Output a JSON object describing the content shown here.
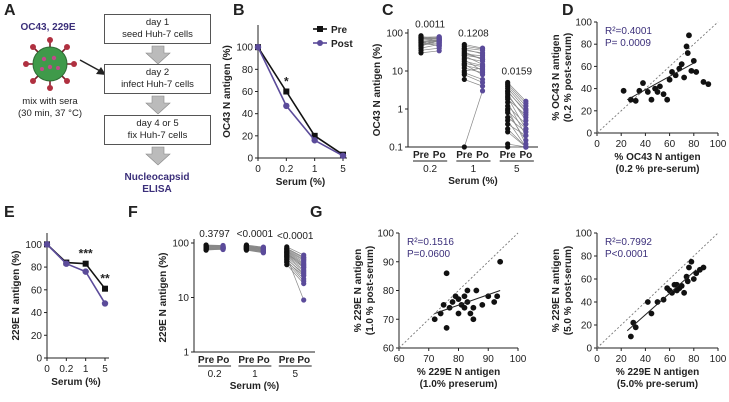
{
  "panels": {
    "A": "A",
    "B": "B",
    "C": "C",
    "D": "D",
    "E": "E",
    "F": "F",
    "G": "G"
  },
  "schematic": {
    "virus_label": "OC43, 229E",
    "mix_line1": "mix with sera",
    "mix_line2": "(30 min, 37 °C)",
    "steps": [
      {
        "line1": "day 1",
        "line2": "seed Huh-7 cells"
      },
      {
        "line1": "day 2",
        "line2": "infect Huh-7 cells"
      },
      {
        "line1": "day 4 or 5",
        "line2": "fix Huh-7 cells"
      }
    ],
    "readout_line1": "Nucleocapsid",
    "readout_line2": "ELISA"
  },
  "colors": {
    "pre": "#111111",
    "post": "#5b4b9a",
    "accent": "#3b2f7a",
    "line": "#888888"
  },
  "chart_data": [
    {
      "id": "B",
      "type": "line",
      "ylabel": "OC43 N antigen (%)",
      "xlabel": "Serum (%)",
      "x_ticks": [
        "0",
        "0.2",
        "1",
        "5"
      ],
      "yticks": [
        0,
        20,
        40,
        60,
        80,
        100
      ],
      "ylim": [
        0,
        120
      ],
      "legend": [
        "Pre",
        "Post"
      ],
      "series": [
        {
          "name": "Pre",
          "values": [
            100,
            60,
            20,
            3
          ]
        },
        {
          "name": "Post",
          "values": [
            100,
            47,
            16,
            2
          ]
        }
      ],
      "annotations": [
        {
          "x": "0.2",
          "text": "*"
        }
      ]
    },
    {
      "id": "C",
      "type": "scatter",
      "ylabel": "OC43 N antigen (%)",
      "xlabel": "Serum (%)",
      "yscale": "log",
      "ylim": [
        0.1,
        100
      ],
      "yticks": [
        "0.1",
        "1",
        "10",
        "100"
      ],
      "pair_labels": [
        "Pre",
        "Po"
      ],
      "groups": [
        {
          "label": "0.2",
          "pvalue": "0.0011",
          "pre": [
            70,
            75,
            80,
            60,
            55,
            85,
            65,
            50,
            40,
            72,
            68,
            58,
            45,
            62,
            78,
            35,
            52,
            66,
            48,
            74,
            30,
            57
          ],
          "post": [
            75,
            80,
            70,
            60,
            65,
            55,
            72,
            62,
            50,
            68,
            58,
            45,
            66,
            52,
            78,
            40,
            48,
            64,
            56,
            70,
            34,
            46
          ]
        },
        {
          "label": "1",
          "pvalue": "0.1208",
          "pre": [
            50,
            40,
            30,
            25,
            20,
            35,
            15,
            10,
            8,
            45,
            28,
            18,
            12,
            22,
            32,
            6,
            9,
            14,
            0.1,
            26,
            38,
            16
          ],
          "post": [
            40,
            35,
            20,
            15,
            10,
            30,
            8,
            12,
            5,
            38,
            25,
            14,
            9,
            18,
            20,
            4,
            6,
            11,
            3,
            22,
            28,
            13
          ]
        },
        {
          "label": "5",
          "pvalue": "0.0159",
          "pre": [
            5,
            4,
            3,
            2.5,
            2,
            1.5,
            1,
            0.8,
            0.5,
            0.3,
            0.1,
            3.5,
            2.2,
            1.2,
            0.6,
            0.25,
            4.5,
            1.8,
            0.9,
            0.4,
            0.12,
            2.8
          ],
          "post": [
            1.6,
            1.2,
            0.8,
            0.5,
            0.3,
            0.2,
            0.12,
            0.15,
            0.1,
            0.1,
            0.1,
            1,
            0.6,
            0.4,
            0.25,
            0.1,
            1.4,
            0.7,
            0.3,
            0.2,
            0.1,
            0.9
          ]
        }
      ]
    },
    {
      "id": "D",
      "type": "scatter",
      "xlabel_line1": "% OC43 N antigen",
      "xlabel_line2": "(0.2 % pre-serum)",
      "ylabel_line1": "% OC43 N antigen",
      "ylabel_line2": "(0.2 % post-serum)",
      "xlim": [
        0,
        100
      ],
      "ylim": [
        0,
        100
      ],
      "xticks": [
        0,
        20,
        40,
        60,
        80,
        100
      ],
      "yticks": [
        0,
        20,
        40,
        60,
        80,
        100
      ],
      "stats_r2": "R²=0.4001",
      "stats_p": "P= 0.0009",
      "points": [
        [
          22,
          38
        ],
        [
          28,
          30
        ],
        [
          32,
          29
        ],
        [
          35,
          38
        ],
        [
          38,
          45
        ],
        [
          42,
          37
        ],
        [
          45,
          30
        ],
        [
          48,
          40
        ],
        [
          50,
          37
        ],
        [
          52,
          42
        ],
        [
          55,
          35
        ],
        [
          58,
          30
        ],
        [
          60,
          48
        ],
        [
          62,
          55
        ],
        [
          65,
          52
        ],
        [
          68,
          58
        ],
        [
          70,
          62
        ],
        [
          72,
          50
        ],
        [
          74,
          78
        ],
        [
          75,
          72
        ],
        [
          76,
          88
        ],
        [
          78,
          56
        ],
        [
          80,
          65
        ],
        [
          82,
          55
        ],
        [
          88,
          46
        ],
        [
          92,
          44
        ]
      ],
      "fit": [
        [
          25,
          30
        ],
        [
          80,
          63
        ]
      ]
    },
    {
      "id": "E",
      "type": "line",
      "ylabel": "229E N antigen (%)",
      "xlabel": "Serum (%)",
      "x_ticks": [
        "0",
        "0.2",
        "1",
        "5"
      ],
      "yticks": [
        0,
        20,
        40,
        60,
        80,
        100
      ],
      "ylim": [
        0,
        110
      ],
      "series": [
        {
          "name": "Pre",
          "values": [
            100,
            84,
            83,
            61
          ]
        },
        {
          "name": "Post",
          "values": [
            100,
            83,
            76,
            48
          ]
        }
      ],
      "annotations": [
        {
          "x": "1",
          "text": "***"
        },
        {
          "x": "5",
          "text": "**"
        }
      ]
    },
    {
      "id": "F",
      "type": "scatter",
      "ylabel": "229E N antigen (%)",
      "xlabel": "Serum (%)",
      "yscale": "log",
      "ylim": [
        1,
        100
      ],
      "yticks": [
        "1",
        "10",
        "100"
      ],
      "pair_labels": [
        "Pre",
        "Po"
      ],
      "groups": [
        {
          "label": "0.2",
          "pvalue": "0.3797",
          "pre": [
            85,
            80,
            78,
            82,
            90,
            88,
            75,
            84,
            79,
            86,
            92,
            81,
            77,
            83,
            87,
            76,
            89,
            74,
            80,
            85
          ],
          "post": [
            83,
            79,
            80,
            84,
            88,
            86,
            78,
            82,
            81,
            85,
            90,
            80,
            76,
            82,
            84,
            79,
            87,
            77,
            78,
            83
          ]
        },
        {
          "label": "1",
          "pvalue": "<0.0001",
          "pre": [
            85,
            80,
            78,
            82,
            90,
            88,
            75,
            84,
            79,
            86,
            92,
            81,
            77,
            83,
            87,
            76,
            89,
            74,
            80,
            85
          ],
          "post": [
            78,
            72,
            70,
            75,
            82,
            80,
            68,
            77,
            71,
            79,
            84,
            73,
            69,
            76,
            80,
            68,
            81,
            66,
            72,
            77
          ]
        },
        {
          "label": "5",
          "pvalue": "<0.0001",
          "pre": [
            85,
            80,
            70,
            65,
            60,
            55,
            50,
            45,
            40,
            75,
            68,
            58,
            48,
            62,
            52,
            72,
            66,
            44,
            56,
            78
          ],
          "post": [
            60,
            55,
            45,
            40,
            35,
            30,
            28,
            25,
            18,
            50,
            42,
            32,
            22,
            38,
            26,
            48,
            36,
            20,
            9,
            53
          ]
        }
      ]
    },
    {
      "id": "G1",
      "type": "scatter",
      "xlabel_line1": "% 229E N antigen",
      "xlabel_line2": "(1.0% preserum)",
      "ylabel_line1": "% 229E N antigen",
      "ylabel_line2": "(1.0 % post-serum)",
      "xlim": [
        60,
        100
      ],
      "ylim": [
        60,
        100
      ],
      "xticks": [
        60,
        70,
        80,
        90,
        100
      ],
      "yticks": [
        60,
        70,
        80,
        90,
        100
      ],
      "stats_r2": "R²=0.1516",
      "stats_p": "P=0.0600",
      "points": [
        [
          72,
          70
        ],
        [
          74,
          72
        ],
        [
          75,
          75
        ],
        [
          76,
          67
        ],
        [
          77,
          74
        ],
        [
          78,
          76
        ],
        [
          79,
          78
        ],
        [
          80,
          77
        ],
        [
          80,
          72
        ],
        [
          81,
          75
        ],
        [
          82,
          74
        ],
        [
          82,
          78
        ],
        [
          83,
          76
        ],
        [
          84,
          72
        ],
        [
          85,
          74
        ],
        [
          85,
          70
        ],
        [
          86,
          80
        ],
        [
          88,
          75
        ],
        [
          90,
          78
        ],
        [
          92,
          76
        ],
        [
          93,
          78
        ],
        [
          94,
          90
        ],
        [
          76,
          86
        ],
        [
          83,
          80
        ]
      ],
      "fit": [
        [
          72,
          72
        ],
        [
          94,
          80
        ]
      ]
    },
    {
      "id": "G2",
      "type": "scatter",
      "xlabel_line1": "% 229E N antigen",
      "xlabel_line2": "(5.0% pre-serum)",
      "ylabel_line1": "% 229E N antigen",
      "ylabel_line2": "(5.0 % post-serum)",
      "xlim": [
        0,
        100
      ],
      "ylim": [
        0,
        100
      ],
      "xticks": [
        0,
        20,
        40,
        60,
        80,
        100
      ],
      "yticks": [
        0,
        20,
        40,
        60,
        80,
        100
      ],
      "stats_r2": "R²=0.7992",
      "stats_p": "P<0.0001",
      "points": [
        [
          28,
          10
        ],
        [
          30,
          22
        ],
        [
          32,
          18
        ],
        [
          42,
          40
        ],
        [
          45,
          30
        ],
        [
          50,
          40
        ],
        [
          55,
          42
        ],
        [
          58,
          52
        ],
        [
          60,
          50
        ],
        [
          62,
          48
        ],
        [
          64,
          55
        ],
        [
          66,
          50
        ],
        [
          68,
          52
        ],
        [
          70,
          54
        ],
        [
          72,
          48
        ],
        [
          74,
          62
        ],
        [
          75,
          58
        ],
        [
          76,
          70
        ],
        [
          78,
          75
        ],
        [
          80,
          60
        ],
        [
          82,
          65
        ],
        [
          85,
          68
        ],
        [
          88,
          70
        ],
        [
          66,
          55
        ]
      ],
      "fit": [
        [
          25,
          15
        ],
        [
          82,
          68
        ]
      ]
    }
  ]
}
